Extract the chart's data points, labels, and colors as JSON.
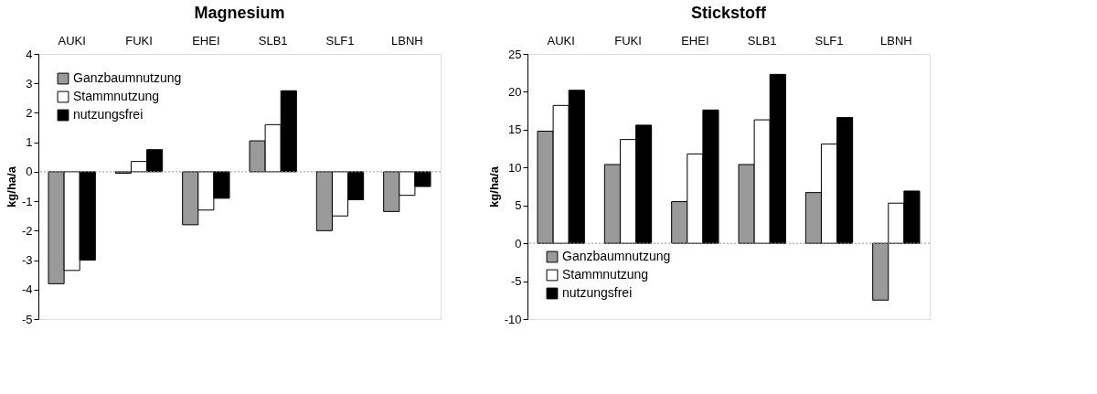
{
  "chart_data": [
    {
      "type": "bar",
      "title": "Magnesium",
      "ylabel": "kg/ha/a",
      "categories": [
        "AUKI",
        "FUKI",
        "EHEI",
        "SLB1",
        "SLF1",
        "LBNH"
      ],
      "ylim": [
        -5,
        4
      ],
      "yticks": [
        -5,
        -4,
        -3,
        -2,
        -1,
        0,
        1,
        2,
        3,
        4
      ],
      "grid": false,
      "legend": "top left",
      "ref_lines": [
        {
          "axis": "y",
          "value": 0,
          "color": "#999999",
          "line_style": "dotted"
        }
      ],
      "series": [
        {
          "name": "Ganzbaumnutzung",
          "color": "#9a9a9a",
          "values": [
            -3.8,
            -0.05,
            -1.8,
            1.05,
            -2.0,
            -1.35
          ]
        },
        {
          "name": "Stammnutzung",
          "color": "#ffffff",
          "values": [
            -3.35,
            0.35,
            -1.3,
            1.6,
            -1.5,
            -0.8
          ]
        },
        {
          "name": "nutzungsfrei",
          "color": "#000000",
          "values": [
            -3.0,
            0.75,
            -0.9,
            2.75,
            -0.95,
            -0.5
          ]
        }
      ]
    },
    {
      "type": "bar",
      "title": "Stickstoff",
      "ylabel": "kg/ha/a",
      "categories": [
        "AUKI",
        "FUKI",
        "EHEI",
        "SLB1",
        "SLF1",
        "LBNH"
      ],
      "ylim": [
        -10,
        25
      ],
      "yticks": [
        -10,
        -5,
        0,
        5,
        10,
        15,
        20,
        25
      ],
      "grid": false,
      "legend": "bottom left",
      "ref_lines": [
        {
          "axis": "y",
          "value": 0,
          "color": "#999999",
          "line_style": "dotted"
        }
      ],
      "series": [
        {
          "name": "Ganzbaumnutzung",
          "color": "#9a9a9a",
          "values": [
            14.8,
            10.4,
            5.5,
            10.4,
            6.7,
            -7.5
          ]
        },
        {
          "name": "Stammnutzung",
          "color": "#ffffff",
          "values": [
            18.2,
            13.7,
            11.8,
            16.3,
            13.1,
            5.3
          ]
        },
        {
          "name": "nutzungsfrei",
          "color": "#000000",
          "values": [
            20.2,
            15.6,
            17.6,
            22.3,
            16.6,
            6.9
          ]
        }
      ]
    }
  ]
}
